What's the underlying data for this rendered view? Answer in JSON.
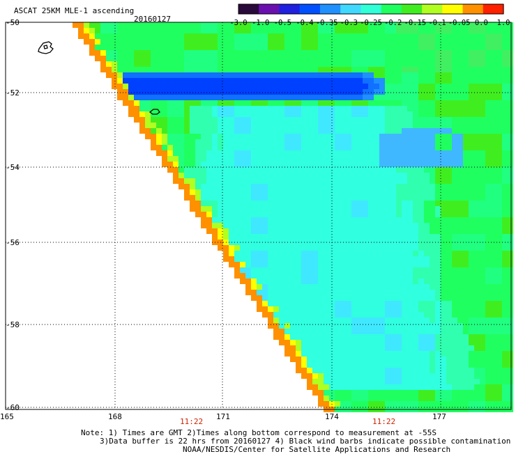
{
  "header": {
    "title": "ASCAT 25KM MLE-1 ascending",
    "date": "20160127"
  },
  "colorbar": {
    "ticks": [
      "-3.0",
      "-1.0",
      "-0.5",
      "-0.4",
      "-0.35",
      "-0.3",
      "-0.25",
      "-0.2",
      "-0.15",
      "-0.1",
      "-0.05",
      "0.0",
      "1.0"
    ],
    "colors": [
      "#2a0a3a",
      "#6a10b0",
      "#2020e0",
      "#0050ff",
      "#2090ff",
      "#40d8ff",
      "#30ffd8",
      "#20ff60",
      "#40ee20",
      "#b0ff20",
      "#ffff00",
      "#ff9000",
      "#ff2000"
    ]
  },
  "axes": {
    "lat_labels": [
      "-50",
      "-52",
      "-54",
      "-56",
      "-58",
      "-60"
    ],
    "lon_labels": [
      "165",
      "168",
      "171",
      "174",
      "177"
    ]
  },
  "times": [
    "11:22",
    "11:22"
  ],
  "notes": {
    "line1": "Note: 1) Times are GMT 2)Times along bottom correspond to measurement at -55S",
    "line2": "3)Data buffer is 22 hrs from 20160127 4) Black wind barbs indicate possible contamination",
    "line3": "NOAA/NESDIS/Center for Satellite Applications and Research"
  }
}
